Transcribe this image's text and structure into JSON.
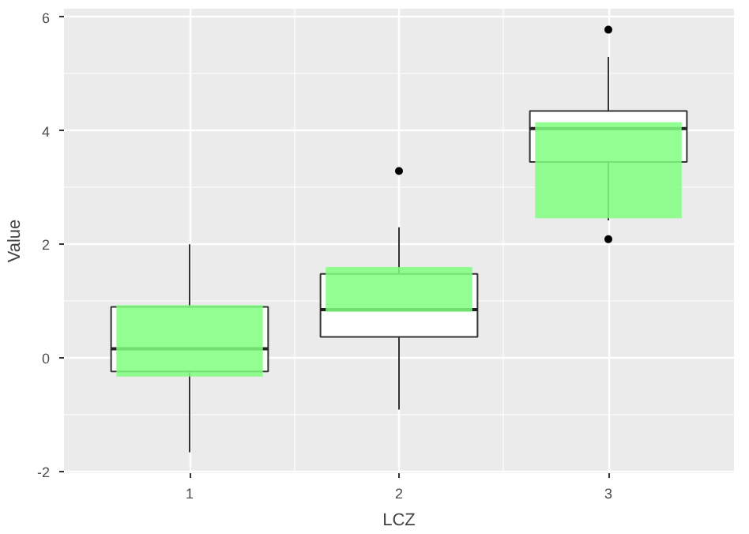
{
  "chart_data": {
    "type": "box",
    "xlabel": "LCZ",
    "ylabel": "Value",
    "categories": [
      "1",
      "2",
      "3"
    ],
    "ylim": [
      -2.03,
      6.15
    ],
    "yticks": [
      -2,
      0,
      2,
      4,
      6
    ],
    "grid": true,
    "series": [
      {
        "color": "#ffffff",
        "boxes": [
          {
            "low": -1.66,
            "q1": -0.24,
            "median": 0.16,
            "q3": 0.9,
            "high": 2.0
          },
          {
            "low": -0.91,
            "q1": 0.37,
            "median": 0.85,
            "q3": 1.48,
            "high": 2.3,
            "outliers": [
              3.29
            ]
          },
          {
            "low": 2.42,
            "q1": 3.45,
            "median": 4.04,
            "q3": 4.35,
            "high": 5.3,
            "outliers": [
              5.78,
              2.09
            ]
          }
        ]
      },
      {
        "type": "bar",
        "color": "#80ff80",
        "base": [
          -0.33,
          0.81,
          2.46
        ],
        "values": [
          1.26,
          0.79,
          1.69
        ]
      }
    ]
  }
}
